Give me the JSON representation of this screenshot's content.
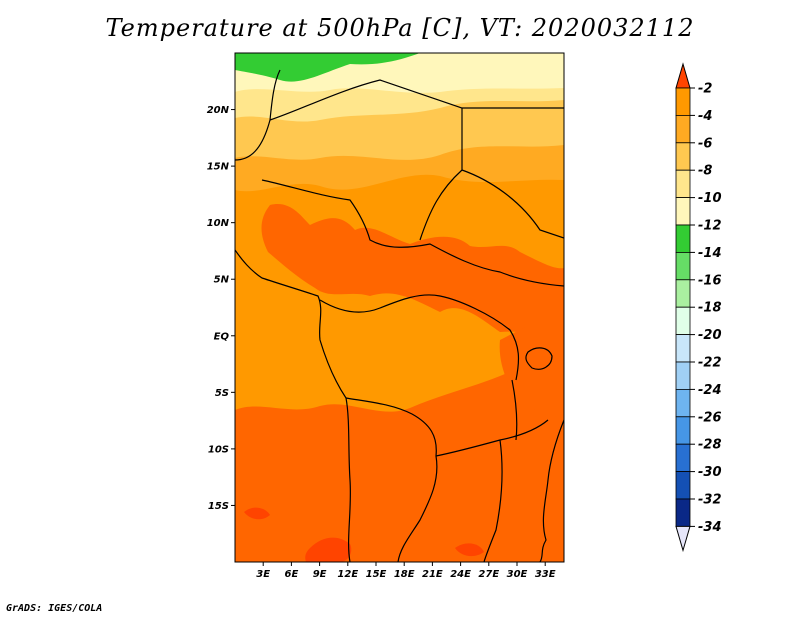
{
  "title": "Temperature at 500hPa [C], VT: 2020032112",
  "footer": "GrADS: IGES/COLA",
  "map": {
    "lon_range": [
      0,
      35
    ],
    "lat_range": [
      -20,
      25
    ],
    "lon_ticks": [
      {
        "lon": 3,
        "label": "3E"
      },
      {
        "lon": 6,
        "label": "6E"
      },
      {
        "lon": 9,
        "label": "9E"
      },
      {
        "lon": 12,
        "label": "12E"
      },
      {
        "lon": 15,
        "label": "15E"
      },
      {
        "lon": 18,
        "label": "18E"
      },
      {
        "lon": 21,
        "label": "21E"
      },
      {
        "lon": 24,
        "label": "24E"
      },
      {
        "lon": 27,
        "label": "27E"
      },
      {
        "lon": 30,
        "label": "30E"
      },
      {
        "lon": 33,
        "label": "33E"
      }
    ],
    "lat_ticks": [
      {
        "lat": 20,
        "label": "20N"
      },
      {
        "lat": 15,
        "label": "15N"
      },
      {
        "lat": 10,
        "label": "10N"
      },
      {
        "lat": 5,
        "label": "5N"
      },
      {
        "lat": 0,
        "label": "EQ"
      },
      {
        "lat": -5,
        "label": "5S"
      },
      {
        "lat": -10,
        "label": "10S"
      },
      {
        "lat": -15,
        "label": "15S"
      }
    ]
  },
  "colorbar": {
    "levels": [
      {
        "label": "-2",
        "color": "#ff6600"
      },
      {
        "label": "-4",
        "color": "#ff9900"
      },
      {
        "label": "-6",
        "color": "#ffaa22"
      },
      {
        "label": "-8",
        "color": "#ffc850"
      },
      {
        "label": "-10",
        "color": "#ffe68c"
      },
      {
        "label": "-12",
        "color": "#fff7bb"
      },
      {
        "label": "-14",
        "color": "#33cc33"
      },
      {
        "label": "-16",
        "color": "#66dd66"
      },
      {
        "label": "-18",
        "color": "#aaf0a0"
      },
      {
        "label": "-20",
        "color": "#e0ffe8"
      },
      {
        "label": "-22",
        "color": "#c8e6fa"
      },
      {
        "label": "-24",
        "color": "#a0d0f5"
      },
      {
        "label": "-26",
        "color": "#6eb4f0"
      },
      {
        "label": "-28",
        "color": "#4696e6"
      },
      {
        "label": "-30",
        "color": "#2870d2"
      },
      {
        "label": "-32",
        "color": "#1450b4"
      },
      {
        "label": "-34",
        "color": "#0a2887"
      }
    ],
    "top_color": "#ff4400",
    "bottom_color": "#e6e6fa"
  },
  "colors": {
    "red": "#ff4400",
    "orange_red": "#ff6600",
    "orange": "#ff9900",
    "light_orange": "#ffaa22",
    "yellow_orange": "#ffc850",
    "pale_yellow": "#ffe68c",
    "cream": "#fff7bb",
    "green": "#33cc33",
    "lines": "#000000"
  }
}
